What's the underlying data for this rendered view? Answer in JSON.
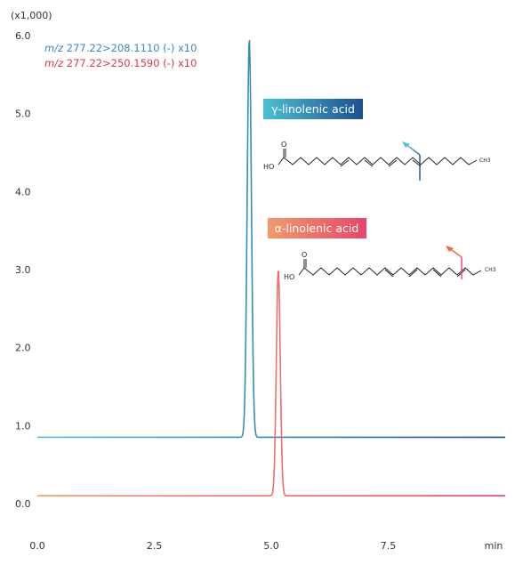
{
  "chart_data": {
    "type": "line",
    "y_multiplier_label": "(x1,000)",
    "xlabel": "min",
    "xlim": [
      0.0,
      10.0
    ],
    "ylim": [
      0.0,
      6.0
    ],
    "x_ticks": [
      "0.0",
      "2.5",
      "5.0",
      "7.5"
    ],
    "y_ticks": [
      "0.0",
      "1.0",
      "2.0",
      "3.0",
      "4.0",
      "5.0",
      "6.0"
    ],
    "grid": false,
    "legend_position": "top-left",
    "series": [
      {
        "name": "m/z 277.22>208.1110 (-) x10",
        "name_prefix": "m/z",
        "name_rest": "277.22>208.1110 (-) x10",
        "color": "#3f86c4",
        "gradient": [
          "#4cc1d2",
          "#1d4f91"
        ],
        "baseline": 0.85,
        "peak_time": 4.53,
        "peak_height": 5.95,
        "peak_sigma": 0.045,
        "compound": "γ-linolenic acid"
      },
      {
        "name": "m/z 277.22>250.1590 (-) x10",
        "name_prefix": "m/z",
        "name_rest": "277.22>250.1590 (-) x10",
        "color": "#d8394f",
        "gradient": [
          "#f29a6a",
          "#e8456b"
        ],
        "baseline": 0.1,
        "peak_time": 5.15,
        "peak_height": 3.0,
        "peak_sigma": 0.042,
        "compound": "α-linolenic acid"
      }
    ],
    "annotations": [
      {
        "label": "γ-linolenic acid",
        "series": 0,
        "structure_labels": [
          "HO",
          "O",
          "CH3"
        ]
      },
      {
        "label": "α-linolenic acid",
        "series": 1,
        "structure_labels": [
          "HO",
          "O",
          "CH3"
        ]
      }
    ]
  }
}
